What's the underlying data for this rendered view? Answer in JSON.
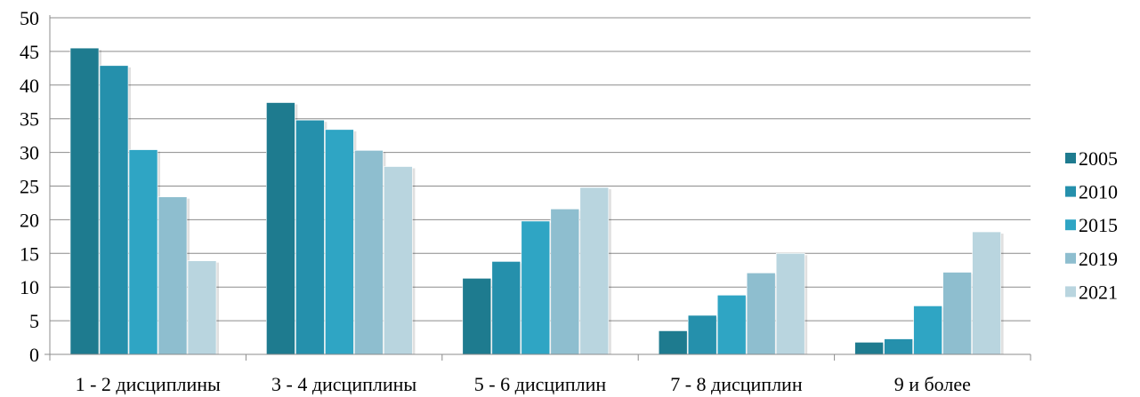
{
  "chart_data": {
    "type": "bar",
    "categories": [
      "1 - 2 дисциплины",
      "3 - 4 дисциплины",
      "5 - 6 дисциплин",
      "7 - 8 дисциплин",
      "9 и более"
    ],
    "series": [
      {
        "name": "2005",
        "values": [
          45.5,
          37.4,
          11.3,
          3.5,
          1.8
        ],
        "color": "#1e7b8f"
      },
      {
        "name": "2010",
        "values": [
          42.9,
          34.8,
          13.8,
          5.8,
          2.3
        ],
        "color": "#2590ac"
      },
      {
        "name": "2015",
        "values": [
          30.4,
          33.4,
          19.8,
          8.8,
          7.2
        ],
        "color": "#2fa5c4"
      },
      {
        "name": "2019",
        "values": [
          23.4,
          30.3,
          21.6,
          12.1,
          12.2
        ],
        "color": "#8ebecf"
      },
      {
        "name": "2021",
        "values": [
          13.9,
          27.9,
          24.8,
          15.0,
          18.2
        ],
        "color": "#b9d5df"
      }
    ],
    "yticks": [
      0,
      5,
      10,
      15,
      20,
      25,
      30,
      35,
      40,
      45,
      50
    ],
    "ylim": [
      0,
      50
    ],
    "title": "",
    "xlabel": "",
    "ylabel": "",
    "grid": true,
    "legend_position": "right"
  }
}
